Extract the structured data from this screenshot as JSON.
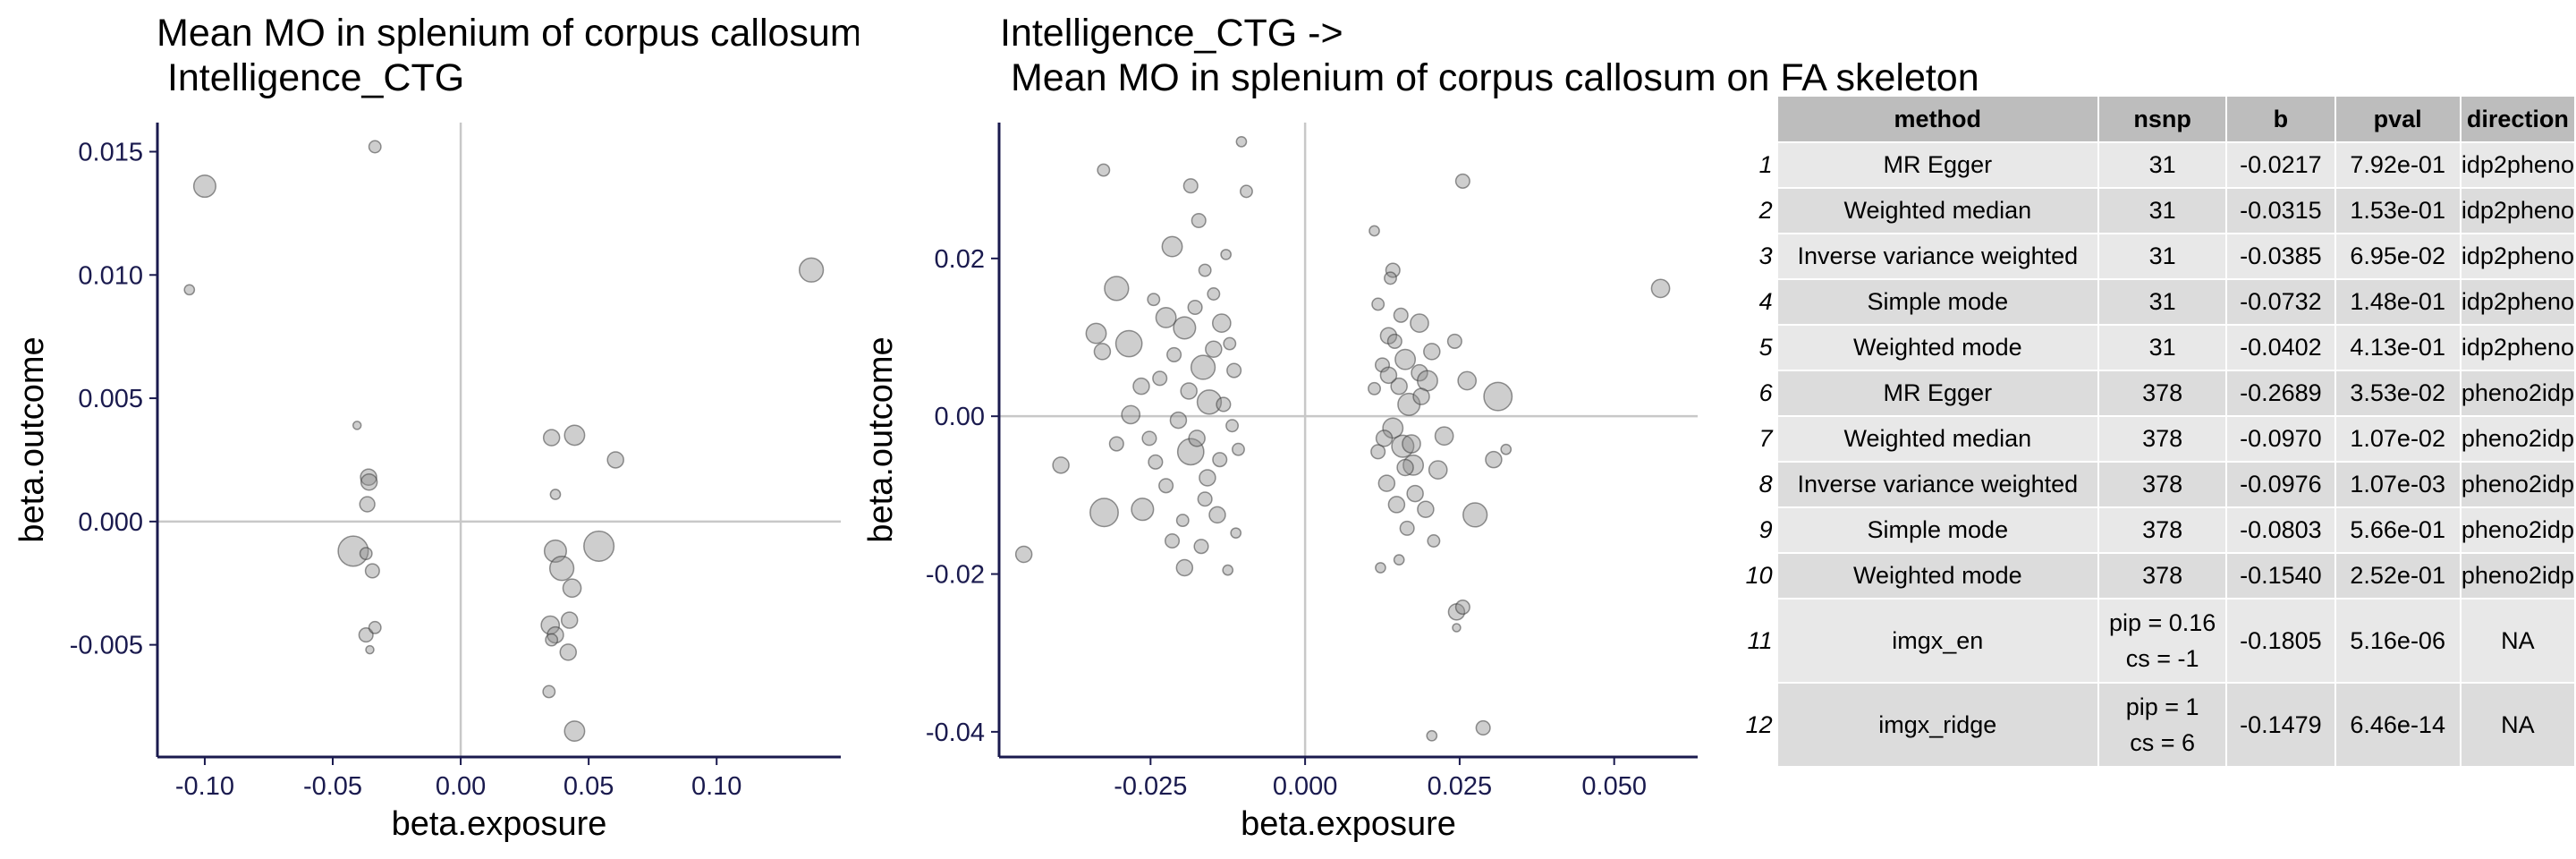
{
  "chart_data": [
    {
      "type": "scatter",
      "title": "Mean MO in splenium of corpus callosum on FA skeleton ->\n Intelligence_CTG",
      "xlabel": "beta.exposure",
      "ylabel": "beta.outcome",
      "xlim": [
        -0.1185,
        0.1485
      ],
      "ylim": [
        -0.00955,
        0.01618
      ],
      "xticks": [
        -0.1,
        -0.05,
        0.0,
        0.05,
        0.1
      ],
      "xtick_labels": [
        "-0.10",
        "-0.05",
        "0.00",
        "0.05",
        "0.10"
      ],
      "yticks": [
        -0.005,
        0.0,
        0.005,
        0.01,
        0.015
      ],
      "ytick_labels": [
        "-0.005",
        "0.000",
        "0.005",
        "0.010",
        "0.015"
      ],
      "points": [
        {
          "x": -0.1,
          "y": 0.0136,
          "s": 2.2
        },
        {
          "x": -0.106,
          "y": 0.0094,
          "s": 1.0
        },
        {
          "x": -0.0335,
          "y": 0.0152,
          "s": 1.2
        },
        {
          "x": 0.137,
          "y": 0.0102,
          "s": 2.4
        },
        {
          "x": -0.0405,
          "y": 0.0039,
          "s": 0.8
        },
        {
          "x": -0.036,
          "y": 0.0018,
          "s": 1.6
        },
        {
          "x": -0.0358,
          "y": 0.0016,
          "s": 1.6
        },
        {
          "x": -0.0365,
          "y": 0.0007,
          "s": 1.5
        },
        {
          "x": -0.042,
          "y": -0.0012,
          "s": 3.0
        },
        {
          "x": -0.037,
          "y": -0.0013,
          "s": 1.2
        },
        {
          "x": -0.0345,
          "y": -0.002,
          "s": 1.4
        },
        {
          "x": -0.037,
          "y": -0.0046,
          "s": 1.4
        },
        {
          "x": -0.0335,
          "y": -0.0043,
          "s": 1.2
        },
        {
          "x": -0.0355,
          "y": -0.0052,
          "s": 0.8
        },
        {
          "x": 0.0355,
          "y": 0.0034,
          "s": 1.6
        },
        {
          "x": 0.0445,
          "y": 0.0035,
          "s": 2.0
        },
        {
          "x": 0.0605,
          "y": 0.0025,
          "s": 1.6
        },
        {
          "x": 0.037,
          "y": 0.0011,
          "s": 1.0
        },
        {
          "x": 0.054,
          "y": -0.001,
          "s": 3.0
        },
        {
          "x": 0.037,
          "y": -0.0012,
          "s": 2.2
        },
        {
          "x": 0.0395,
          "y": -0.0019,
          "s": 2.4
        },
        {
          "x": 0.0435,
          "y": -0.0027,
          "s": 1.8
        },
        {
          "x": 0.035,
          "y": -0.0042,
          "s": 1.8
        },
        {
          "x": 0.037,
          "y": -0.0046,
          "s": 1.6
        },
        {
          "x": 0.0425,
          "y": -0.004,
          "s": 1.6
        },
        {
          "x": 0.0355,
          "y": -0.0048,
          "s": 1.2
        },
        {
          "x": 0.042,
          "y": -0.0053,
          "s": 1.6
        },
        {
          "x": 0.0345,
          "y": -0.0069,
          "s": 1.2
        },
        {
          "x": 0.0445,
          "y": -0.0085,
          "s": 2.0
        }
      ]
    },
    {
      "type": "scatter",
      "title": "Intelligence_CTG ->\n Mean MO in splenium of corpus callosum on FA skeleton",
      "xlabel": "beta.exposure",
      "ylabel": "beta.outcome",
      "xlim": [
        -0.0495,
        0.0635
      ],
      "ylim": [
        -0.04319,
        0.03722
      ],
      "xticks": [
        -0.025,
        0.0,
        0.025,
        0.05
      ],
      "xtick_labels": [
        "-0.025",
        "0.000",
        "0.025",
        "0.050"
      ],
      "yticks": [
        -0.04,
        -0.02,
        0.0,
        0.02
      ],
      "ytick_labels": [
        "-0.04",
        "-0.02",
        "0.00",
        "0.02"
      ],
      "points": [
        {
          "x": -0.0103,
          "y": 0.0348,
          "s": 1.0
        },
        {
          "x": -0.0326,
          "y": 0.0312,
          "s": 1.2
        },
        {
          "x": -0.0095,
          "y": 0.0285,
          "s": 1.2
        },
        {
          "x": -0.0305,
          "y": 0.0162,
          "s": 2.4
        },
        {
          "x": -0.0328,
          "y": 0.0082,
          "s": 1.6
        },
        {
          "x": -0.0215,
          "y": 0.0215,
          "s": 2.0
        },
        {
          "x": -0.0338,
          "y": 0.0105,
          "s": 2.0
        },
        {
          "x": -0.0285,
          "y": 0.0092,
          "s": 2.6
        },
        {
          "x": -0.0325,
          "y": -0.0122,
          "s": 2.8
        },
        {
          "x": -0.0263,
          "y": -0.0118,
          "s": 2.2
        },
        {
          "x": -0.0455,
          "y": -0.0175,
          "s": 1.6
        },
        {
          "x": -0.0395,
          "y": -0.0062,
          "s": 1.6
        },
        {
          "x": -0.0305,
          "y": -0.0035,
          "s": 1.4
        },
        {
          "x": -0.0282,
          "y": 0.0002,
          "s": 1.8
        },
        {
          "x": -0.0242,
          "y": -0.0058,
          "s": 1.4
        },
        {
          "x": -0.0215,
          "y": -0.0158,
          "s": 1.4
        },
        {
          "x": -0.0195,
          "y": -0.0192,
          "s": 1.6
        },
        {
          "x": -0.0185,
          "y": 0.0292,
          "s": 1.4
        },
        {
          "x": -0.0172,
          "y": 0.0248,
          "s": 1.4
        },
        {
          "x": -0.0165,
          "y": 0.0062,
          "s": 2.4
        },
        {
          "x": -0.0225,
          "y": 0.0125,
          "s": 2.0
        },
        {
          "x": -0.0195,
          "y": 0.0112,
          "s": 2.2
        },
        {
          "x": -0.0155,
          "y": 0.0018,
          "s": 2.4
        },
        {
          "x": -0.0185,
          "y": -0.0045,
          "s": 2.6
        },
        {
          "x": -0.0135,
          "y": 0.0118,
          "s": 1.8
        },
        {
          "x": -0.0142,
          "y": -0.0125,
          "s": 1.6
        },
        {
          "x": -0.0168,
          "y": -0.0165,
          "s": 1.4
        },
        {
          "x": -0.0125,
          "y": -0.0195,
          "s": 1.0
        },
        {
          "x": -0.0128,
          "y": 0.0205,
          "s": 1.0
        },
        {
          "x": -0.0115,
          "y": 0.0058,
          "s": 1.4
        },
        {
          "x": -0.0108,
          "y": -0.0042,
          "s": 1.2
        },
        {
          "x": -0.0148,
          "y": 0.0155,
          "s": 1.2
        },
        {
          "x": -0.0205,
          "y": -0.0005,
          "s": 1.6
        },
        {
          "x": -0.0235,
          "y": 0.0048,
          "s": 1.4
        },
        {
          "x": -0.0265,
          "y": 0.0038,
          "s": 1.6
        },
        {
          "x": -0.0188,
          "y": 0.0032,
          "s": 1.6
        },
        {
          "x": -0.0175,
          "y": -0.0028,
          "s": 1.6
        },
        {
          "x": -0.0158,
          "y": -0.0078,
          "s": 1.6
        },
        {
          "x": -0.0148,
          "y": 0.0085,
          "s": 1.6
        },
        {
          "x": -0.0138,
          "y": -0.0055,
          "s": 1.4
        },
        {
          "x": -0.0132,
          "y": 0.0015,
          "s": 1.4
        },
        {
          "x": -0.0162,
          "y": -0.0105,
          "s": 1.4
        },
        {
          "x": -0.0122,
          "y": 0.0092,
          "s": 1.2
        },
        {
          "x": -0.0225,
          "y": -0.0088,
          "s": 1.4
        },
        {
          "x": -0.0245,
          "y": 0.0148,
          "s": 1.2
        },
        {
          "x": -0.0252,
          "y": -0.0028,
          "s": 1.4
        },
        {
          "x": -0.0212,
          "y": 0.0078,
          "s": 1.4
        },
        {
          "x": -0.0178,
          "y": 0.0138,
          "s": 1.4
        },
        {
          "x": -0.0118,
          "y": -0.0012,
          "s": 1.2
        },
        {
          "x": -0.0112,
          "y": -0.0148,
          "s": 1.0
        },
        {
          "x": -0.0198,
          "y": -0.0132,
          "s": 1.2
        },
        {
          "x": -0.0162,
          "y": 0.0185,
          "s": 1.2
        },
        {
          "x": 0.0112,
          "y": 0.0235,
          "s": 1.0
        },
        {
          "x": 0.0255,
          "y": 0.0298,
          "s": 1.4
        },
        {
          "x": 0.0142,
          "y": 0.0185,
          "s": 1.4
        },
        {
          "x": 0.0118,
          "y": 0.0142,
          "s": 1.2
        },
        {
          "x": 0.0135,
          "y": 0.0102,
          "s": 1.6
        },
        {
          "x": 0.0162,
          "y": 0.0072,
          "s": 2.0
        },
        {
          "x": 0.0185,
          "y": 0.0055,
          "s": 1.6
        },
        {
          "x": 0.0168,
          "y": 0.0015,
          "s": 2.2
        },
        {
          "x": 0.0142,
          "y": -0.0015,
          "s": 2.0
        },
        {
          "x": 0.0158,
          "y": -0.0038,
          "s": 2.2
        },
        {
          "x": 0.0175,
          "y": -0.0062,
          "s": 2.0
        },
        {
          "x": 0.0132,
          "y": -0.0085,
          "s": 1.6
        },
        {
          "x": 0.0148,
          "y": -0.0112,
          "s": 1.6
        },
        {
          "x": 0.0165,
          "y": -0.0142,
          "s": 1.4
        },
        {
          "x": 0.0152,
          "y": -0.0182,
          "s": 1.0
        },
        {
          "x": 0.0122,
          "y": -0.0192,
          "s": 1.0
        },
        {
          "x": 0.0195,
          "y": -0.0118,
          "s": 1.6
        },
        {
          "x": 0.0215,
          "y": -0.0068,
          "s": 1.8
        },
        {
          "x": 0.0185,
          "y": 0.0118,
          "s": 1.8
        },
        {
          "x": 0.0205,
          "y": 0.0082,
          "s": 1.6
        },
        {
          "x": 0.0225,
          "y": -0.0025,
          "s": 1.8
        },
        {
          "x": 0.0198,
          "y": 0.0045,
          "s": 2.0
        },
        {
          "x": 0.0242,
          "y": 0.0095,
          "s": 1.4
        },
        {
          "x": 0.0112,
          "y": 0.0035,
          "s": 1.2
        },
        {
          "x": 0.0118,
          "y": -0.0045,
          "s": 1.4
        },
        {
          "x": 0.0125,
          "y": 0.0065,
          "s": 1.4
        },
        {
          "x": 0.0155,
          "y": 0.0128,
          "s": 1.4
        },
        {
          "x": 0.0178,
          "y": -0.0098,
          "s": 1.6
        },
        {
          "x": 0.0138,
          "y": 0.0175,
          "s": 1.2
        },
        {
          "x": 0.0245,
          "y": -0.0248,
          "s": 1.6
        },
        {
          "x": 0.0255,
          "y": -0.0242,
          "s": 1.4
        },
        {
          "x": 0.0245,
          "y": -0.0268,
          "s": 0.8
        },
        {
          "x": 0.0275,
          "y": -0.0125,
          "s": 2.4
        },
        {
          "x": 0.0312,
          "y": 0.0025,
          "s": 2.8
        },
        {
          "x": 0.0262,
          "y": 0.0045,
          "s": 1.8
        },
        {
          "x": 0.0305,
          "y": -0.0055,
          "s": 1.6
        },
        {
          "x": 0.0325,
          "y": -0.0042,
          "s": 1.0
        },
        {
          "x": 0.0575,
          "y": 0.0162,
          "s": 1.8
        },
        {
          "x": 0.0288,
          "y": -0.0395,
          "s": 1.4
        },
        {
          "x": 0.0205,
          "y": -0.0405,
          "s": 1.0
        },
        {
          "x": 0.0128,
          "y": -0.0028,
          "s": 1.6
        },
        {
          "x": 0.0152,
          "y": 0.0038,
          "s": 1.6
        },
        {
          "x": 0.0172,
          "y": -0.0035,
          "s": 1.8
        },
        {
          "x": 0.0135,
          "y": 0.0052,
          "s": 1.6
        },
        {
          "x": 0.0162,
          "y": -0.0065,
          "s": 1.6
        },
        {
          "x": 0.0188,
          "y": 0.0025,
          "s": 1.6
        },
        {
          "x": 0.0145,
          "y": 0.0095,
          "s": 1.4
        },
        {
          "x": 0.0208,
          "y": -0.0158,
          "s": 1.2
        }
      ]
    }
  ],
  "table": {
    "headers": [
      "method",
      "nsnp",
      "b",
      "pval",
      "direction"
    ],
    "rows": [
      {
        "rn": "1",
        "method": "MR Egger",
        "nsnp": "31",
        "b": "-0.0217",
        "pval": "7.92e-01",
        "direction": "idp2pheno"
      },
      {
        "rn": "2",
        "method": "Weighted median",
        "nsnp": "31",
        "b": "-0.0315",
        "pval": "1.53e-01",
        "direction": "idp2pheno"
      },
      {
        "rn": "3",
        "method": "Inverse variance weighted",
        "nsnp": "31",
        "b": "-0.0385",
        "pval": "6.95e-02",
        "direction": "idp2pheno"
      },
      {
        "rn": "4",
        "method": "Simple mode",
        "nsnp": "31",
        "b": "-0.0732",
        "pval": "1.48e-01",
        "direction": "idp2pheno"
      },
      {
        "rn": "5",
        "method": "Weighted mode",
        "nsnp": "31",
        "b": "-0.0402",
        "pval": "4.13e-01",
        "direction": "idp2pheno"
      },
      {
        "rn": "6",
        "method": "MR Egger",
        "nsnp": "378",
        "b": "-0.2689",
        "pval": "3.53e-02",
        "direction": "pheno2idp"
      },
      {
        "rn": "7",
        "method": "Weighted median",
        "nsnp": "378",
        "b": "-0.0970",
        "pval": "1.07e-02",
        "direction": "pheno2idp"
      },
      {
        "rn": "8",
        "method": "Inverse variance weighted",
        "nsnp": "378",
        "b": "-0.0976",
        "pval": "1.07e-03",
        "direction": "pheno2idp"
      },
      {
        "rn": "9",
        "method": "Simple mode",
        "nsnp": "378",
        "b": "-0.0803",
        "pval": "5.66e-01",
        "direction": "pheno2idp"
      },
      {
        "rn": "10",
        "method": "Weighted mode",
        "nsnp": "378",
        "b": "-0.1540",
        "pval": "2.52e-01",
        "direction": "pheno2idp"
      },
      {
        "rn": "11",
        "method": "imgx_en",
        "nsnp": "pip = 0.16\ncs = -1",
        "b": "-0.1805",
        "pval": "5.16e-06",
        "direction": "NA"
      },
      {
        "rn": "12",
        "method": "imgx_ridge",
        "nsnp": "pip = 1\ncs = 6",
        "b": "-0.1479",
        "pval": "6.46e-14",
        "direction": "NA"
      }
    ]
  },
  "colors": {
    "axis": "#1a1a4e",
    "ref_line": "#c8c8c8",
    "point_fill": "#8a8a8a",
    "point_stroke": "#3c3c3c"
  }
}
